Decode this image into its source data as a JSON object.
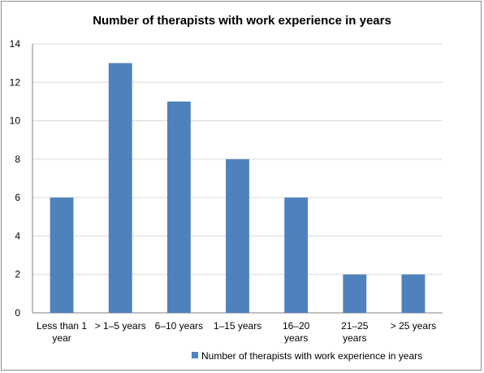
{
  "chart_data": {
    "type": "bar",
    "title": "Number of therapists with work experience in years",
    "categories": [
      [
        "Less than 1",
        "year"
      ],
      [
        "> 1–5 years"
      ],
      [
        "6–10 years"
      ],
      [
        "1–15 years"
      ],
      [
        "16–20",
        "years"
      ],
      [
        "21–25",
        "years"
      ],
      [
        "> 25 years"
      ]
    ],
    "series": [
      {
        "name": "Number of therapists with work experience in years",
        "values": [
          6,
          13,
          11,
          8,
          6,
          2,
          2
        ],
        "color": "#4f81bd"
      }
    ],
    "ylim": [
      0,
      14
    ],
    "yticks": [
      0,
      2,
      4,
      6,
      8,
      10,
      12,
      14
    ],
    "xlabel": "",
    "ylabel": "",
    "grid": true,
    "legend_position": "bottom-right"
  }
}
